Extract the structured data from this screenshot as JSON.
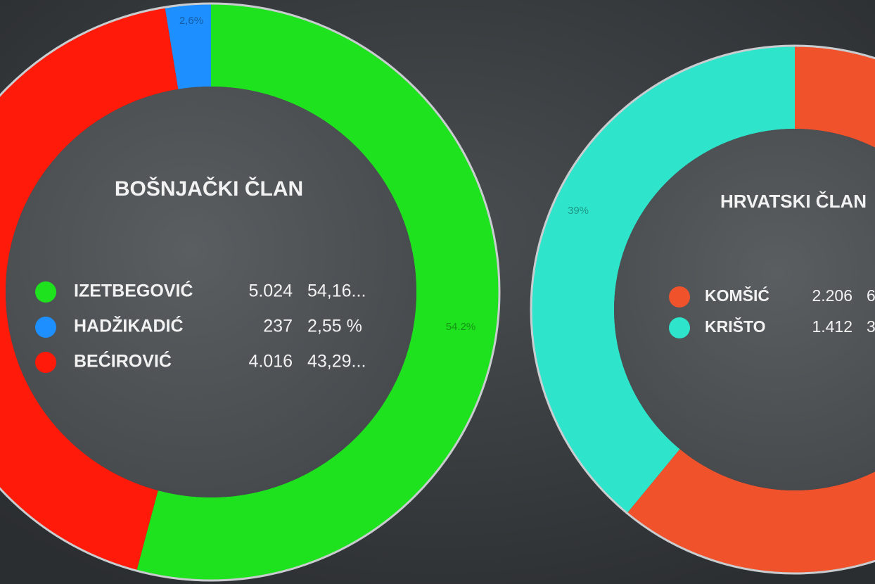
{
  "chart_data": [
    {
      "type": "donut",
      "title": "BOŠNJAČKI ČLAN",
      "categories": [
        "IZETBEGOVIĆ",
        "HADŽIKADIĆ",
        "BEĆIROVIĆ"
      ],
      "values": [
        5024,
        237,
        4016
      ],
      "value_labels": [
        "5.024",
        "237",
        "4.016"
      ],
      "percent_labels": [
        "54,16...",
        "2,55 %",
        "43,29..."
      ],
      "slice_labels": [
        "54.2%",
        "2,6%",
        null
      ],
      "colors": [
        "#1fe21f",
        "#1e8fff",
        "#ff1a0a"
      ]
    },
    {
      "type": "donut",
      "title": "HRVATSKI ČLAN",
      "categories": [
        "KOMŠIĆ",
        "KRIŠTO"
      ],
      "values": [
        2206,
        1412
      ],
      "value_labels": [
        "2.206",
        "1.412"
      ],
      "percent_labels": [
        "6",
        "3"
      ],
      "slice_labels": [
        null,
        "39%"
      ],
      "colors": [
        "#f0532c",
        "#2ee5cc"
      ]
    }
  ]
}
